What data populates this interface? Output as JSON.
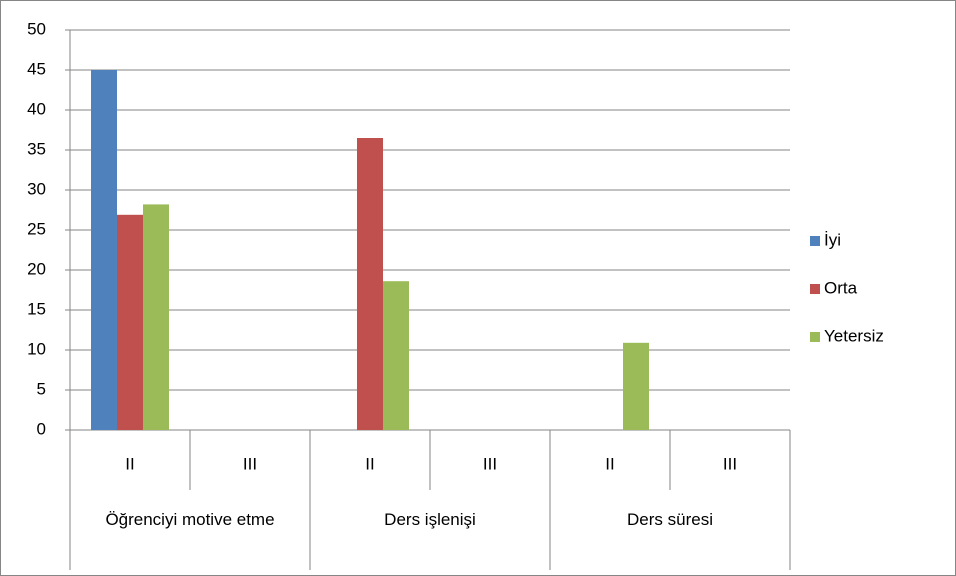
{
  "chart_data": {
    "type": "bar",
    "categories": [
      "II",
      "III",
      "II",
      "III",
      "II",
      "III"
    ],
    "groups": [
      "Öğrenciyi motive etme",
      "Ders işlenişi",
      "Ders süresi"
    ],
    "series": [
      {
        "name": "İyi",
        "color": "#4f81bd",
        "values": [
          45,
          0,
          0,
          0,
          0,
          0
        ]
      },
      {
        "name": "Orta",
        "color": "#c0504d",
        "values": [
          26.9,
          0,
          36.5,
          0,
          0,
          0
        ]
      },
      {
        "name": "Yetersiz",
        "color": "#9bbb59",
        "values": [
          28.2,
          0,
          18.6,
          0,
          10.9,
          0
        ]
      }
    ],
    "ylim": [
      0,
      50
    ],
    "yticks": [
      0,
      5,
      10,
      15,
      20,
      25,
      30,
      35,
      40,
      45,
      50
    ],
    "grid": true,
    "legend": "right"
  }
}
